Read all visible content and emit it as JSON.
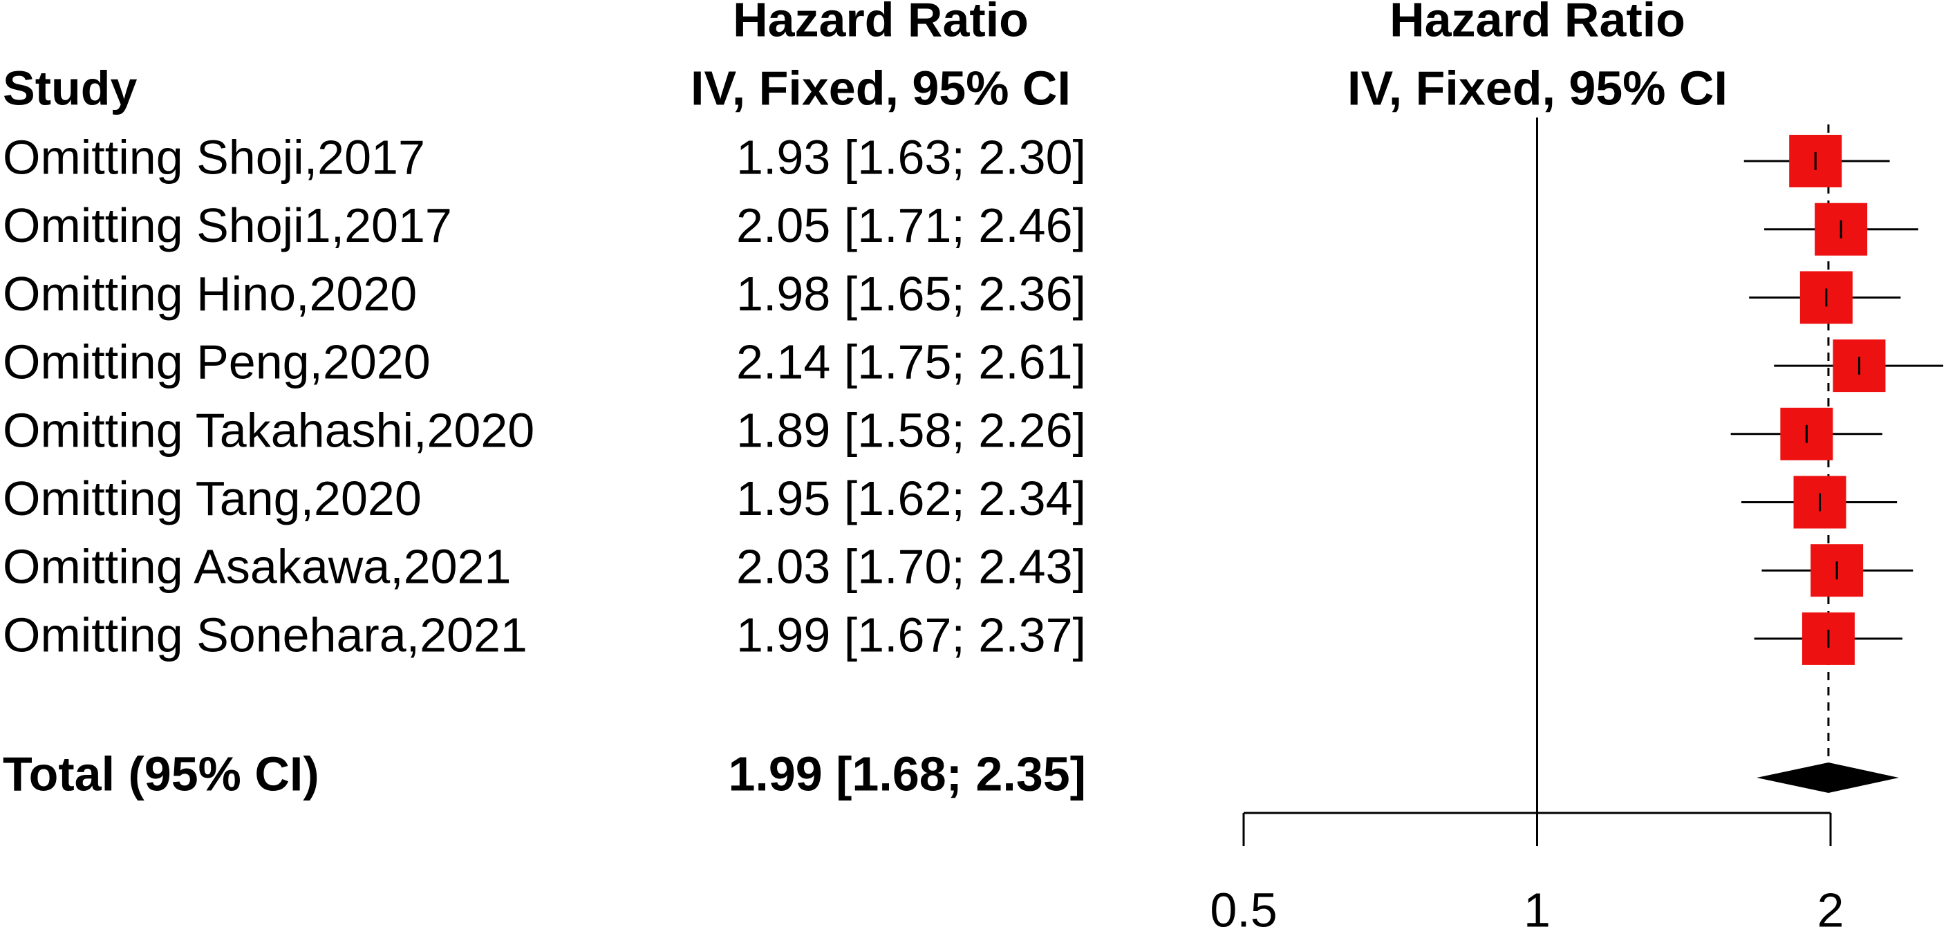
{
  "chart_data": {
    "type": "forest",
    "column_headers": {
      "study": "Study",
      "effect": [
        "Hazard Ratio",
        "IV, Fixed, 95% CI"
      ],
      "plot": [
        "Hazard Ratio",
        "IV, Fixed, 95% CI"
      ]
    },
    "categories": [
      "Omitting Shoji,2017",
      "Omitting Shoji1,2017",
      "Omitting Hino,2020",
      "Omitting Peng,2020",
      "Omitting Takahashi,2020",
      "Omitting Tang,2020",
      "Omitting Asakawa,2021",
      "Omitting Sonehara,2021"
    ],
    "values": [
      1.93,
      2.05,
      1.98,
      2.14,
      1.89,
      1.95,
      2.03,
      1.99
    ],
    "lower": [
      1.63,
      1.71,
      1.65,
      1.75,
      1.58,
      1.62,
      1.7,
      1.67
    ],
    "upper": [
      2.3,
      2.46,
      2.36,
      2.61,
      2.26,
      2.34,
      2.43,
      2.37
    ],
    "value_labels": [
      "1.93 [1.63; 2.30]",
      "2.05 [1.71; 2.46]",
      "1.98 [1.65; 2.36]",
      "2.14 [1.75; 2.61]",
      "1.89 [1.58; 2.26]",
      "1.95 [1.62; 2.34]",
      "2.03 [1.70; 2.43]",
      "1.99 [1.67; 2.37]"
    ],
    "total": {
      "name": "Total (95% CI)",
      "value": 1.99,
      "lower": 1.68,
      "upper": 2.35,
      "value_label": "1.99 [1.68; 2.35]"
    },
    "color": "#ee1111",
    "xscale": "log",
    "null_line": 1,
    "xlim": [
      0.5,
      2
    ],
    "xticks": [
      0.5,
      1,
      2
    ]
  }
}
